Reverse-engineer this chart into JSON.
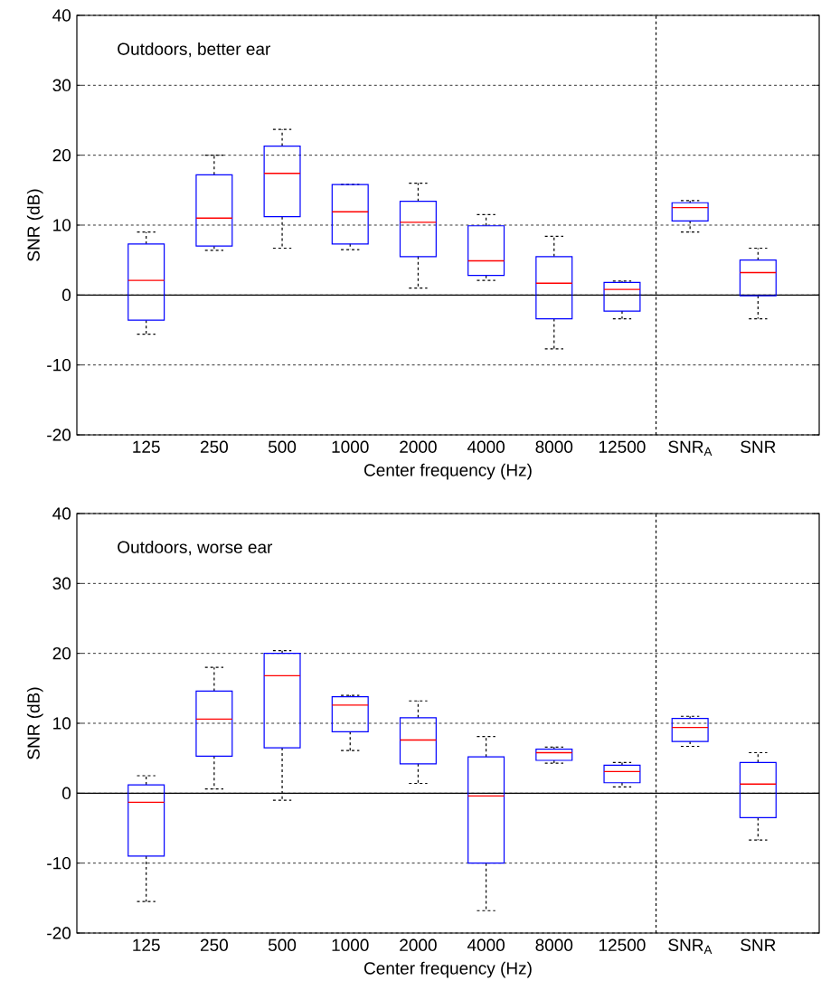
{
  "chart_data": [
    {
      "type": "box",
      "title": "Outdoors, better ear",
      "xlabel": "Center frequency (Hz)",
      "ylabel": "SNR (dB)",
      "categories": [
        "125",
        "250",
        "500",
        "1000",
        "2000",
        "4000",
        "8000",
        "12500",
        "SNR$_{A}$",
        "SNR"
      ],
      "series": [
        {
          "color": "#0000ff",
          "boxes": [
            {
              "low": -5.6,
              "q1": -3.6,
              "median": 2.1,
              "q3": 7.3,
              "high": 9.0
            },
            {
              "low": 6.4,
              "q1": 7.0,
              "median": 11.0,
              "q3": 17.2,
              "high": 20.0
            },
            {
              "low": 6.7,
              "q1": 11.2,
              "median": 17.4,
              "q3": 21.3,
              "high": 23.7
            },
            {
              "low": 6.5,
              "q1": 7.3,
              "median": 11.9,
              "q3": 15.8,
              "high": 15.8
            },
            {
              "low": 1.0,
              "q1": 5.5,
              "median": 10.4,
              "q3": 13.4,
              "high": 16.0
            },
            {
              "low": 2.1,
              "q1": 2.8,
              "median": 4.9,
              "q3": 9.9,
              "high": 11.5
            },
            {
              "low": -7.7,
              "q1": -3.4,
              "median": 1.7,
              "q3": 5.5,
              "high": 8.4
            },
            {
              "low": -3.4,
              "q1": -2.3,
              "median": 0.8,
              "q3": 1.8,
              "high": 2.0
            },
            {
              "low": 9.0,
              "q1": 10.6,
              "median": 12.5,
              "q3": 13.2,
              "high": 13.5
            },
            {
              "low": -3.4,
              "q1": -0.1,
              "median": 3.2,
              "q3": 5.0,
              "high": 6.7
            }
          ]
        }
      ],
      "ylim": [
        -20,
        40
      ],
      "yticks": [
        -20,
        -10,
        0,
        10,
        20,
        30,
        40
      ],
      "grid": "y",
      "ref_lines": [
        {
          "axis": "y",
          "value": 0,
          "color": "#000000",
          "line_style": "solid"
        }
      ]
    },
    {
      "type": "box",
      "title": "Outdoors, worse ear",
      "xlabel": "Center frequency (Hz)",
      "ylabel": "SNR (dB)",
      "categories": [
        "125",
        "250",
        "500",
        "1000",
        "2000",
        "4000",
        "8000",
        "12500",
        "SNR$_{A}$",
        "SNR"
      ],
      "series": [
        {
          "color": "#0000ff",
          "boxes": [
            {
              "low": -15.5,
              "q1": -9.0,
              "median": -1.3,
              "q3": 1.2,
              "high": 2.5
            },
            {
              "low": 0.6,
              "q1": 5.3,
              "median": 10.6,
              "q3": 14.6,
              "high": 18.0
            },
            {
              "low": -1.0,
              "q1": 6.5,
              "median": 16.8,
              "q3": 20.0,
              "high": 20.4
            },
            {
              "low": 6.1,
              "q1": 8.8,
              "median": 12.6,
              "q3": 13.8,
              "high": 14.0
            },
            {
              "low": 1.4,
              "q1": 4.2,
              "median": 7.6,
              "q3": 10.8,
              "high": 13.2
            },
            {
              "low": -16.8,
              "q1": -10.0,
              "median": -0.4,
              "q3": 5.2,
              "high": 8.1
            },
            {
              "low": 4.3,
              "q1": 4.7,
              "median": 5.8,
              "q3": 6.3,
              "high": 6.6
            },
            {
              "low": 0.9,
              "q1": 1.5,
              "median": 3.1,
              "q3": 4.0,
              "high": 4.4
            },
            {
              "low": 6.7,
              "q1": 7.4,
              "median": 9.4,
              "q3": 10.7,
              "high": 11.0
            },
            {
              "low": -6.7,
              "q1": -3.5,
              "median": 1.3,
              "q3": 4.4,
              "high": 5.8
            }
          ]
        }
      ],
      "ylim": [
        -20,
        40
      ],
      "yticks": [
        -20,
        -10,
        0,
        10,
        20,
        30,
        40
      ],
      "grid": "y",
      "ref_lines": [
        {
          "axis": "y",
          "value": 0,
          "color": "#000000",
          "line_style": "solid"
        }
      ]
    }
  ]
}
